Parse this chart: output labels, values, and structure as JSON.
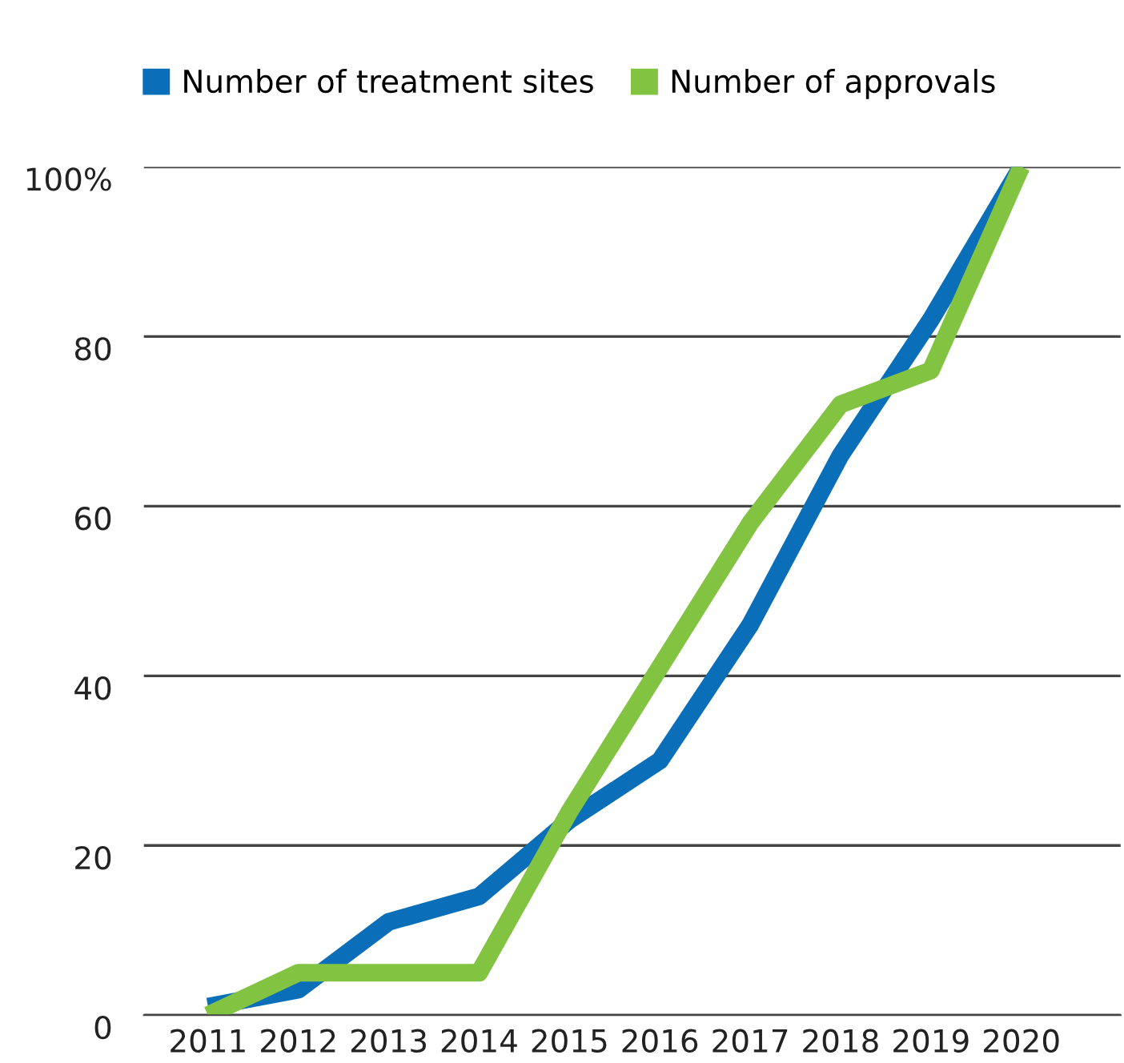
{
  "chart_data": {
    "type": "line",
    "categories": [
      "2011",
      "2012",
      "2013",
      "2014",
      "2015",
      "2016",
      "2017",
      "2018",
      "2019",
      "2020"
    ],
    "series": [
      {
        "name": "Number of treatment sites",
        "color": "#0a6fb8",
        "values": [
          1,
          3,
          11,
          14,
          23,
          30,
          46,
          66,
          82,
          100
        ]
      },
      {
        "name": "Number of approvals",
        "color": "#82c341",
        "values": [
          0,
          5,
          5,
          5,
          24,
          41,
          58,
          72,
          76,
          100
        ]
      }
    ],
    "ylim": [
      0,
      100
    ],
    "yticks": [
      0,
      20,
      40,
      60,
      80,
      {
        "value": 100,
        "label": "100%"
      }
    ],
    "grid": "y",
    "legend": "top left",
    "marker": "none",
    "line_style": "solid"
  }
}
